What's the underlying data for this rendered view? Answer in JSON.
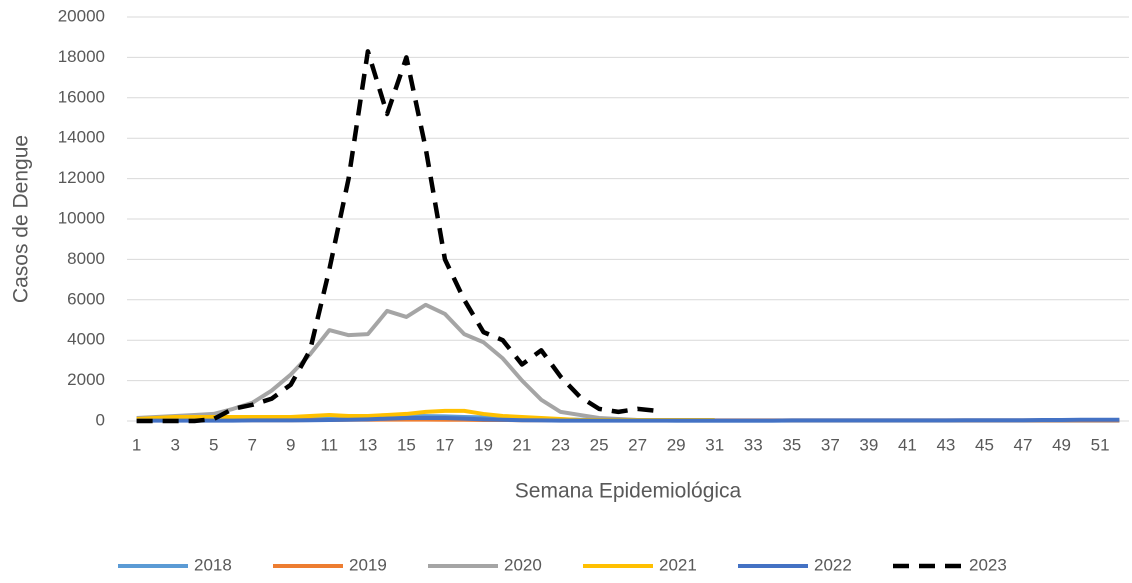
{
  "chart_data": {
    "type": "line",
    "x_label": "Semana Epidemiológica",
    "y_label": "Casos de Dengue",
    "categories": [
      "1",
      null,
      "3",
      null,
      "5",
      null,
      "7",
      null,
      "9",
      null,
      "11",
      null,
      "13",
      null,
      "15",
      null,
      "17",
      null,
      "19",
      null,
      "21",
      null,
      "23",
      null,
      "25",
      null,
      "27",
      null,
      "29",
      null,
      "31",
      null,
      "33",
      null,
      "35",
      null,
      "37",
      null,
      "39",
      null,
      "41",
      null,
      "43",
      null,
      "45",
      null,
      "47",
      null,
      "49",
      null,
      "51",
      null
    ],
    "ylim": [
      0,
      20000
    ],
    "yticks": [
      0,
      2000,
      4000,
      6000,
      8000,
      10000,
      12000,
      14000,
      16000,
      18000,
      20000
    ],
    "grid": true,
    "legend": "bottom",
    "series": [
      {
        "name": "2018",
        "color": "#5b9bd5",
        "dash": false,
        "values": [
          50,
          60,
          70,
          80,
          90,
          100,
          120,
          150,
          180,
          200,
          220,
          230,
          240,
          250,
          250,
          240,
          230,
          200,
          180,
          150,
          120,
          100,
          80,
          60,
          50,
          40,
          30,
          30,
          20,
          20,
          20,
          20,
          20,
          20,
          20,
          20,
          20,
          20,
          20,
          20,
          20,
          20,
          20,
          20,
          20,
          20,
          20,
          20,
          20,
          20,
          20,
          20
        ]
      },
      {
        "name": "2019",
        "color": "#ed7d31",
        "dash": false,
        "values": [
          30,
          30,
          30,
          30,
          30,
          30,
          40,
          40,
          40,
          50,
          50,
          60,
          60,
          70,
          70,
          70,
          60,
          60,
          50,
          50,
          40,
          40,
          30,
          30,
          30,
          30,
          30,
          30,
          30,
          30,
          30,
          30,
          30,
          30,
          30,
          30,
          30,
          30,
          30,
          30,
          30,
          30,
          30,
          30,
          30,
          30,
          30,
          30,
          30,
          30,
          30,
          30
        ]
      },
      {
        "name": "2020",
        "color": "#a5a5a5",
        "dash": false,
        "values": [
          150,
          200,
          250,
          300,
          350,
          600,
          900,
          1500,
          2300,
          3300,
          4500,
          4250,
          4300,
          5450,
          5150,
          5750,
          5300,
          4300,
          3900,
          3100,
          2000,
          1050,
          450,
          300,
          150,
          100,
          50,
          30,
          null,
          null,
          null,
          null,
          null,
          null,
          null,
          null,
          null,
          null,
          null,
          null,
          null,
          null,
          null,
          null,
          null,
          null,
          null,
          null,
          null,
          null,
          null,
          null
        ]
      },
      {
        "name": "2021",
        "color": "#ffc000",
        "dash": false,
        "values": [
          100,
          150,
          200,
          200,
          200,
          200,
          200,
          200,
          200,
          250,
          300,
          250,
          250,
          300,
          350,
          450,
          500,
          500,
          350,
          250,
          200,
          150,
          100,
          50,
          50,
          50,
          50,
          50,
          50,
          50,
          50,
          null,
          null,
          null,
          null,
          null,
          null,
          null,
          null,
          null,
          null,
          null,
          null,
          null,
          null,
          null,
          null,
          null,
          null,
          null,
          null,
          null
        ]
      },
      {
        "name": "2022",
        "color": "#4472c4",
        "dash": false,
        "values": [
          20,
          20,
          20,
          20,
          20,
          20,
          30,
          30,
          30,
          40,
          50,
          60,
          80,
          120,
          150,
          150,
          150,
          120,
          80,
          60,
          40,
          30,
          20,
          20,
          20,
          20,
          20,
          20,
          20,
          20,
          20,
          20,
          20,
          20,
          30,
          30,
          30,
          30,
          30,
          30,
          30,
          30,
          30,
          40,
          40,
          40,
          40,
          50,
          50,
          60,
          60,
          60
        ]
      },
      {
        "name": "2023",
        "color": "#000000",
        "dash": true,
        "values": [
          0,
          0,
          0,
          0,
          100,
          600,
          800,
          1100,
          1800,
          3500,
          7500,
          12000,
          18300,
          15200,
          18000,
          13500,
          8000,
          6000,
          4400,
          4000,
          2800,
          3500,
          2200,
          1200,
          600,
          450,
          600,
          500,
          null,
          null,
          null,
          null,
          null,
          null,
          null,
          null,
          null,
          null,
          null,
          null,
          null,
          null,
          null,
          null,
          null,
          null,
          null,
          null,
          null,
          null,
          null,
          null
        ]
      }
    ]
  }
}
